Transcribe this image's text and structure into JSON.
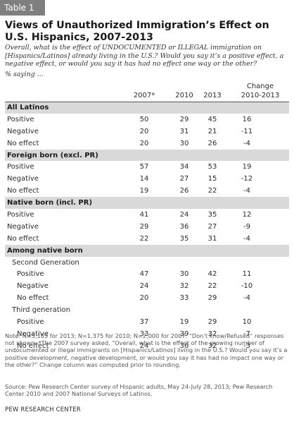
{
  "table_label": "Table 1",
  "title": "Views of Unauthorized Immigration’s Effect on U.S. Hispanics, 2007-2013",
  "subtitle": "Overall, what is the effect of UNDOCUMENTED or ILLEGAL immigration on [Hispanics/Latinos] already living in the U.S.? Would you say it’s a positive effect, a negative effect, or would you say it has had no effect one way or the other?",
  "saying": "% saying ...",
  "columns": {
    "c2007": "2007*",
    "c2010": "2010",
    "c2013": "2013",
    "change_line1": "Change",
    "change_line2": "2010-2013"
  },
  "rows": [
    {
      "type": "band",
      "label": "All Latinos"
    },
    {
      "type": "data",
      "indent": 0,
      "label": "Positive",
      "c2007": "50",
      "c2010": "29",
      "c2013": "45",
      "chg": "16"
    },
    {
      "type": "data",
      "indent": 0,
      "label": "Negative",
      "c2007": "20",
      "c2010": "31",
      "c2013": "21",
      "chg": "-11"
    },
    {
      "type": "data",
      "indent": 0,
      "label": "No effect",
      "c2007": "20",
      "c2010": "30",
      "c2013": "26",
      "chg": "-4"
    },
    {
      "type": "band",
      "label": "Foreign born (excl. PR)"
    },
    {
      "type": "data",
      "indent": 0,
      "label": "Positive",
      "c2007": "57",
      "c2010": "34",
      "c2013": "53",
      "chg": "19"
    },
    {
      "type": "data",
      "indent": 0,
      "label": "Negative",
      "c2007": "14",
      "c2010": "27",
      "c2013": "15",
      "chg": "-12"
    },
    {
      "type": "data",
      "indent": 0,
      "label": "No effect",
      "c2007": "19",
      "c2010": "26",
      "c2013": "22",
      "chg": "-4"
    },
    {
      "type": "band",
      "label": "Native born (incl. PR)"
    },
    {
      "type": "data",
      "indent": 0,
      "label": "Positive",
      "c2007": "41",
      "c2010": "24",
      "c2013": "35",
      "chg": "12"
    },
    {
      "type": "data",
      "indent": 0,
      "label": "Negative",
      "c2007": "29",
      "c2010": "36",
      "c2013": "27",
      "chg": "-9"
    },
    {
      "type": "data",
      "indent": 0,
      "label": "No effect",
      "c2007": "22",
      "c2010": "35",
      "c2013": "31",
      "chg": "-4"
    },
    {
      "type": "band",
      "label": "Among native born"
    },
    {
      "type": "sub",
      "indent": 1,
      "label": "Second Generation"
    },
    {
      "type": "data",
      "indent": 2,
      "label": "Positive",
      "c2007": "47",
      "c2010": "30",
      "c2013": "42",
      "chg": "11"
    },
    {
      "type": "data",
      "indent": 2,
      "label": "Negative",
      "c2007": "24",
      "c2010": "32",
      "c2013": "22",
      "chg": "-10"
    },
    {
      "type": "data",
      "indent": 2,
      "label": "No effect",
      "c2007": "20",
      "c2010": "33",
      "c2013": "29",
      "chg": "-4"
    },
    {
      "type": "sub",
      "indent": 1,
      "label": "Third generation"
    },
    {
      "type": "data",
      "indent": 2,
      "label": "Positive",
      "c2007": "37",
      "c2010": "19",
      "c2013": "29",
      "chg": "10"
    },
    {
      "type": "data",
      "indent": 2,
      "label": "Negative",
      "c2007": "33",
      "c2010": "39",
      "c2013": "32",
      "chg": "-7"
    },
    {
      "type": "data",
      "indent": 2,
      "label": "No effect",
      "c2007": "24",
      "c2010": "36",
      "c2013": "32",
      "chg": "-3"
    }
  ],
  "note": "Note: N=5,103 for 2013; N=1,375 for 2010; N=2,000 for 2007. “Don’t know/Refused” responses not shown. *The 2007 survey asked, “Overall, what is the effect of the growing number of undocumented or illegal immigrants on [Hispanics/Latinos] living in the U.S.? Would you say it’s a positive development, negative development, or would you say it has had no impact one way or the other?” Change column was computed prior to rounding.",
  "source": "Source: Pew Research Center survey of Hispanic adults, May 24-July 28, 2013; Pew Research Center 2010 and 2007 National Surveys of Latinos.",
  "org": "PEW RESEARCH CENTER"
}
